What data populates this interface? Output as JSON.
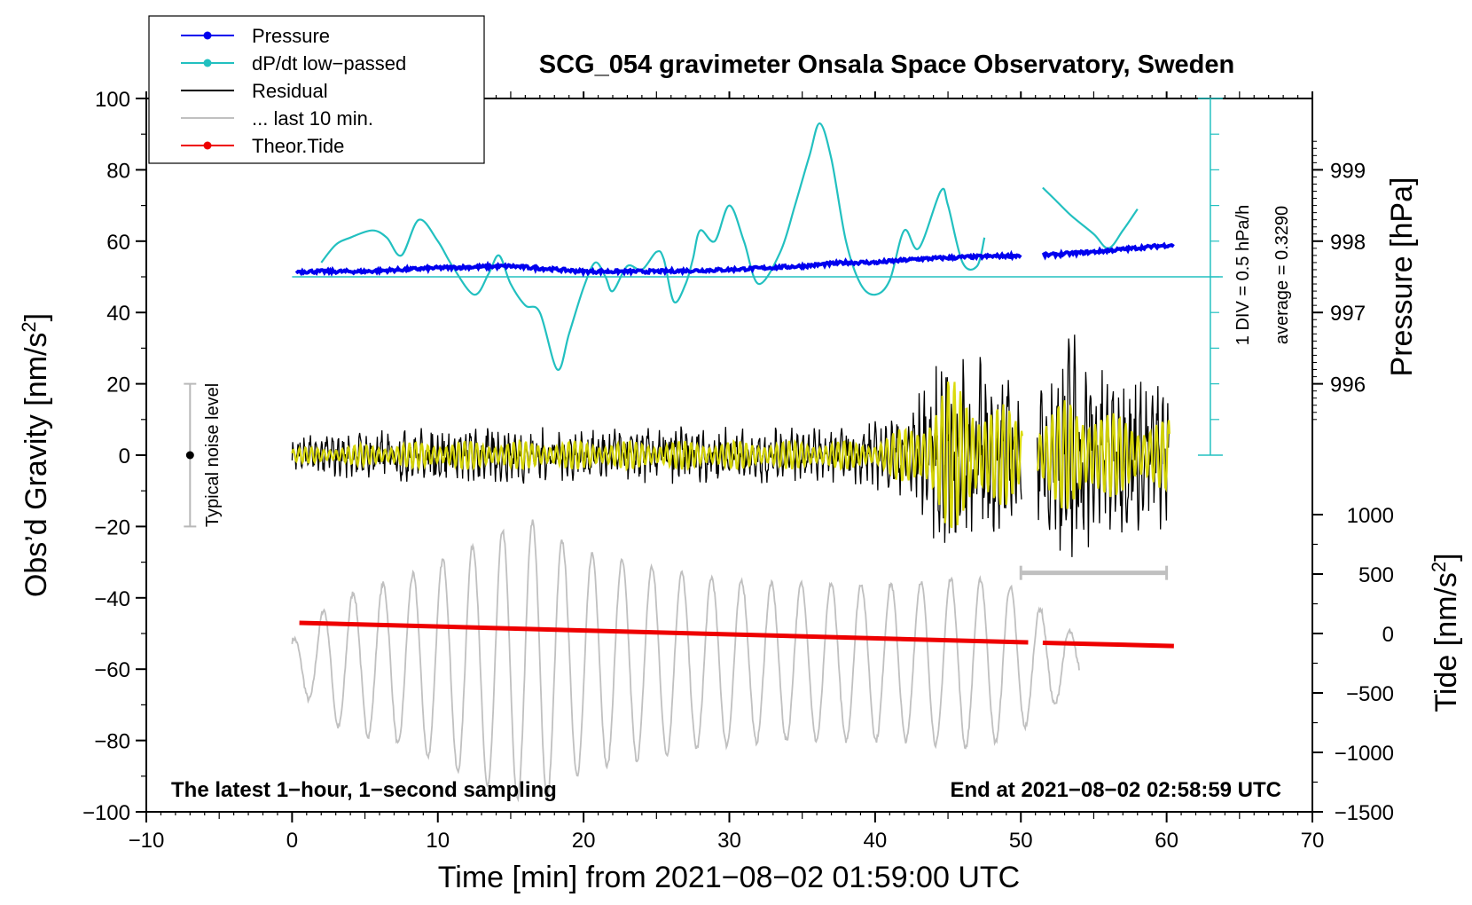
{
  "chart_data": {
    "type": "line",
    "title": "SCG_054 gravimeter Onsala Space Observatory, Sweden",
    "xlabel": "Time [min] from 2021−08−02 01:59:00 UTC",
    "ylabel_left": "Obs’d Gravity [nm/s",
    "ylabel_left_sup": "2",
    "ylabel_left_close": "]",
    "ylabel_right_top": "Pressure [hPa]",
    "ylabel_right_bottom": "Tide [nm/s",
    "ylabel_right_bottom_sup": "2",
    "ylabel_right_bottom_close": "]",
    "xlim": [
      -10,
      70
    ],
    "ylim": [
      -100,
      100
    ],
    "x_ticks": [
      -10,
      0,
      10,
      20,
      30,
      40,
      50,
      60,
      70
    ],
    "x_tick_labels": [
      "−10",
      "0",
      "10",
      "20",
      "30",
      "40",
      "50",
      "60",
      "70"
    ],
    "y_ticks": [
      100,
      80,
      60,
      40,
      20,
      0,
      -20,
      -40,
      -60,
      -80,
      -100
    ],
    "y_tick_labels": [
      "100",
      "80",
      "60",
      "40",
      "20",
      "0",
      "−20",
      "−40",
      "−60",
      "−80",
      "−100"
    ],
    "pressure_axis": {
      "ticks": [
        999,
        998,
        997,
        996
      ],
      "tick_labels": [
        "999",
        "998",
        "997",
        "996"
      ],
      "map_to_gravity": {
        "hpa_at": 998,
        "gravity_at": 60,
        "gravity_per_hpa": 20
      }
    },
    "tide_axis": {
      "ticks": [
        1000,
        500,
        0,
        -500,
        -1000,
        -1500
      ],
      "tick_labels": [
        "1000",
        "500",
        "0",
        "−500",
        "−1000",
        "−1500"
      ],
      "map_to_gravity": {
        "tide_at": 0,
        "gravity_at": -50,
        "gravity_per_unit": 0.0333333
      }
    },
    "legend": {
      "position": "top-left",
      "entries": [
        {
          "label": "Pressure",
          "color": "#0000ee",
          "marker": true
        },
        {
          "label": "dP/dt low−passed",
          "color": "#22c0c0",
          "marker": true
        },
        {
          "label": "Residual",
          "color": "#000000",
          "marker": false
        },
        {
          "label": "... last 10 min.",
          "color": "#c0c0c0",
          "marker": false
        },
        {
          "label": "Theor.Tide",
          "color": "#ee0000",
          "marker": true
        }
      ]
    },
    "annotations": {
      "bottom_left": "The latest 1−hour, 1−second sampling",
      "bottom_right": "End at 2021−08−02 02:58:59 UTC",
      "noise_label": "Typical noise level",
      "div_label": "1 DIV = 0.5 hPa/h",
      "average_label": "average = 0.3290"
    },
    "noise_bar": {
      "x": -7,
      "y": 0,
      "ylow": -20,
      "yhigh": 20
    },
    "scale_bar_10min": {
      "x0": 50,
      "x1": 60,
      "y": -33
    },
    "dpdt_scale": {
      "x": 63,
      "y0": 0,
      "y1": 100,
      "divisions": 10,
      "baseline_y": 50
    },
    "series": [
      {
        "name": "dP/dt low-passed",
        "color": "#22c0c0",
        "segments": [
          [
            [
              2,
              54
            ],
            [
              3,
              59
            ],
            [
              4,
              61
            ],
            [
              5.5,
              63
            ],
            [
              6.5,
              61
            ],
            [
              7.5,
              56
            ],
            [
              8.7,
              66
            ],
            [
              10,
              60
            ],
            [
              11,
              53
            ],
            [
              12.5,
              45
            ],
            [
              13.5,
              51
            ],
            [
              14.2,
              56
            ],
            [
              15,
              48
            ],
            [
              16,
              42
            ],
            [
              17,
              40
            ],
            [
              18.2,
              24
            ],
            [
              19,
              34
            ],
            [
              20,
              47
            ],
            [
              20.8,
              54
            ],
            [
              21.5,
              50
            ],
            [
              22,
              46
            ],
            [
              23,
              53
            ],
            [
              24,
              52
            ],
            [
              25,
              57
            ],
            [
              25.5,
              55
            ],
            [
              26.2,
              43
            ],
            [
              27,
              48
            ],
            [
              27.5,
              55
            ],
            [
              28,
              63
            ],
            [
              29,
              60
            ],
            [
              30,
              70
            ],
            [
              31,
              60
            ],
            [
              32,
              48
            ],
            [
              33.5,
              57
            ],
            [
              34.5,
              70
            ],
            [
              35.5,
              84
            ],
            [
              36.2,
              93
            ],
            [
              37,
              83
            ],
            [
              38,
              60
            ],
            [
              39,
              48
            ],
            [
              40,
              45
            ],
            [
              41,
              49
            ],
            [
              42,
              63
            ],
            [
              43,
              58
            ],
            [
              44.5,
              74
            ],
            [
              45,
              70
            ],
            [
              46,
              54
            ],
            [
              47,
              53
            ],
            [
              47.5,
              61
            ]
          ],
          [
            [
              51.5,
              75
            ],
            [
              52.5,
              71
            ],
            [
              53.5,
              67
            ],
            [
              55,
              62
            ],
            [
              56,
              58
            ],
            [
              57,
              63
            ],
            [
              58,
              69
            ]
          ]
        ]
      },
      {
        "name": "Pressure",
        "color": "#0000ee",
        "segments": [
          [
            [
              0.3,
              51.5
            ],
            [
              5,
              51.5
            ],
            [
              10,
              52.5
            ],
            [
              15,
              53
            ],
            [
              20,
              51.5
            ],
            [
              25,
              51.5
            ],
            [
              30,
              52
            ],
            [
              35,
              53
            ],
            [
              38,
              54
            ],
            [
              40,
              54
            ],
            [
              43,
              55
            ],
            [
              46,
              55.5
            ],
            [
              50,
              56
            ]
          ],
          [
            [
              51.5,
              56
            ],
            [
              55,
              57
            ],
            [
              60.5,
              59
            ]
          ]
        ]
      },
      {
        "name": "Theor.Tide",
        "color": "#ee0000",
        "segments": [
          [
            [
              0.5,
              -47
            ],
            [
              50.5,
              -52.5
            ]
          ],
          [
            [
              51.5,
              -52.6
            ],
            [
              60.5,
              -53.5
            ]
          ]
        ]
      },
      {
        "name": "Residual",
        "color": "#000000",
        "envelope": [
          [
            0,
            6
          ],
          [
            10,
            9
          ],
          [
            20,
            8
          ],
          [
            30,
            9
          ],
          [
            38,
            8
          ],
          [
            42,
            12
          ],
          [
            45,
            32
          ],
          [
            47,
            30
          ],
          [
            49,
            24
          ],
          [
            50,
            20
          ],
          [
            51.5,
            20
          ],
          [
            53.5,
            40
          ],
          [
            55,
            28
          ],
          [
            57,
            24
          ],
          [
            60,
            22
          ]
        ],
        "gaps": [
          [
            50.1,
            51.1
          ]
        ],
        "x_end": 60.2
      },
      {
        "name": "Residual low-passed",
        "color": "#d8d800",
        "envelope": [
          [
            0,
            2
          ],
          [
            10,
            4
          ],
          [
            20,
            4
          ],
          [
            30,
            4
          ],
          [
            40,
            4
          ],
          [
            43,
            10
          ],
          [
            45,
            22
          ],
          [
            47,
            18
          ],
          [
            49,
            14
          ],
          [
            50,
            10
          ],
          [
            51.5,
            10
          ],
          [
            53.5,
            18
          ],
          [
            56,
            12
          ],
          [
            60,
            10
          ]
        ],
        "gaps": [
          [
            50.1,
            51.1
          ]
        ],
        "x_end": 60.2
      },
      {
        "name": "... last 10 min.",
        "color": "#c0c0c0",
        "center": -58,
        "period_min": 2.05,
        "envelope": [
          [
            0,
            6
          ],
          [
            3,
            18
          ],
          [
            8,
            24
          ],
          [
            12,
            32
          ],
          [
            15,
            38
          ],
          [
            17,
            40
          ],
          [
            19,
            32
          ],
          [
            23,
            28
          ],
          [
            28,
            24
          ],
          [
            33,
            22
          ],
          [
            38,
            22
          ],
          [
            42,
            22
          ],
          [
            46,
            24
          ],
          [
            49,
            22
          ],
          [
            51,
            16
          ],
          [
            53,
            10
          ],
          [
            54,
            6
          ]
        ],
        "x_end": 54
      }
    ]
  }
}
